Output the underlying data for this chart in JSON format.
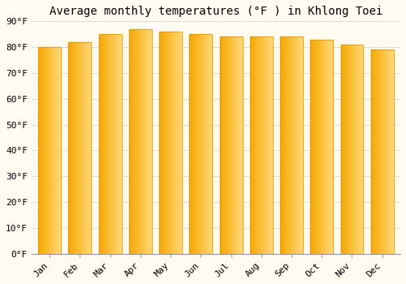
{
  "title": "Average monthly temperatures (°F ) in Khlong Toei",
  "months": [
    "Jan",
    "Feb",
    "Mar",
    "Apr",
    "May",
    "Jun",
    "Jul",
    "Aug",
    "Sep",
    "Oct",
    "Nov",
    "Dec"
  ],
  "values": [
    80,
    82,
    85,
    87,
    86,
    85,
    84,
    84,
    84,
    83,
    81,
    79
  ],
  "bar_color_left": "#F5A800",
  "bar_color_right": "#FFD878",
  "bar_edge_color": "#E09000",
  "background_color": "#FFFBF0",
  "grid_color": "#dddddd",
  "ylim": [
    0,
    90
  ],
  "yticks": [
    0,
    10,
    20,
    30,
    40,
    50,
    60,
    70,
    80,
    90
  ],
  "title_fontsize": 10,
  "tick_fontsize": 8,
  "title_font": "monospace",
  "tick_font": "monospace",
  "bar_width": 0.75
}
